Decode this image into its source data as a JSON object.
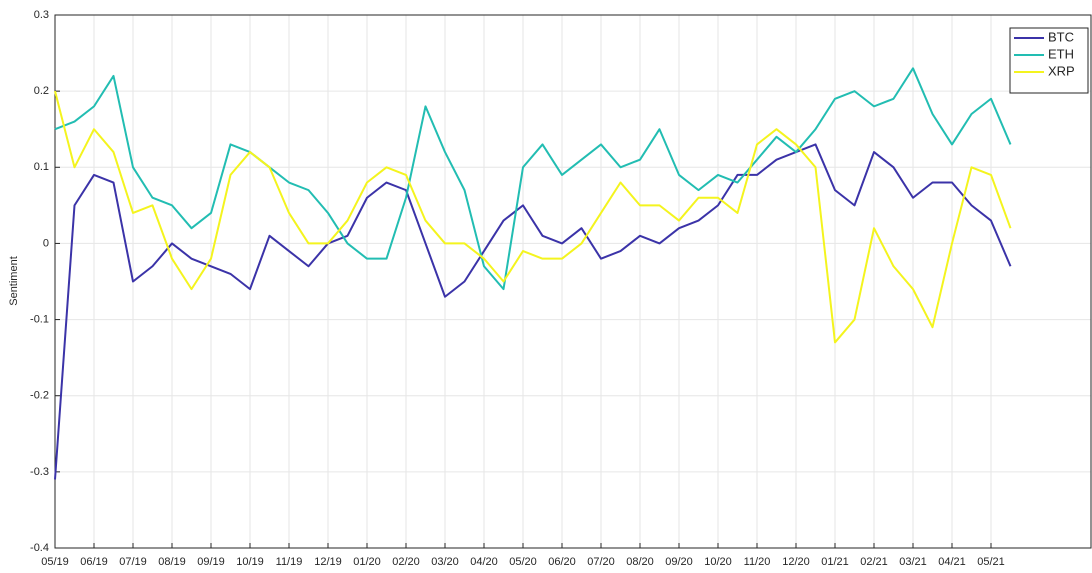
{
  "chart_data": {
    "type": "line",
    "ylabel": "Sentiment",
    "categories": [
      "05/19",
      null,
      "06/19",
      null,
      "07/19",
      null,
      "08/19",
      null,
      "09/19",
      null,
      "10/19",
      null,
      "11/19",
      null,
      "12/19",
      null,
      "01/20",
      null,
      "02/20",
      null,
      "03/20",
      null,
      "04/20",
      null,
      "05/20",
      null,
      "06/20",
      null,
      "07/20",
      null,
      "08/20",
      null,
      "09/20",
      null,
      "10/20",
      null,
      "11/20",
      null,
      "12/20",
      null,
      "01/21",
      null,
      "02/21",
      null,
      "03/21",
      null,
      "04/21",
      null,
      "05/21",
      null
    ],
    "series": [
      {
        "name": "BTC",
        "color": "#3b33a8",
        "values": [
          -0.31,
          0.05,
          0.09,
          0.08,
          -0.05,
          -0.03,
          0.0,
          -0.02,
          -0.03,
          -0.04,
          -0.06,
          0.01,
          -0.01,
          -0.03,
          0.0,
          0.01,
          0.06,
          0.08,
          0.07,
          0.0,
          -0.07,
          -0.05,
          -0.01,
          0.03,
          0.05,
          0.01,
          0.0,
          0.02,
          -0.02,
          -0.01,
          0.01,
          0.0,
          0.02,
          0.03,
          0.05,
          0.09,
          0.09,
          0.11,
          0.12,
          0.13,
          0.07,
          0.05,
          0.12,
          0.1,
          0.06,
          0.08,
          0.08,
          0.05,
          0.03,
          -0.03
        ]
      },
      {
        "name": "ETH",
        "color": "#22bdb2",
        "values": [
          0.15,
          0.16,
          0.18,
          0.22,
          0.1,
          0.06,
          0.05,
          0.02,
          0.04,
          0.13,
          0.12,
          0.1,
          0.08,
          0.07,
          0.04,
          0.0,
          -0.02,
          -0.02,
          0.06,
          0.18,
          0.12,
          0.07,
          -0.03,
          -0.06,
          0.1,
          0.13,
          0.09,
          0.11,
          0.13,
          0.1,
          0.11,
          0.15,
          0.09,
          0.07,
          0.09,
          0.08,
          0.11,
          0.14,
          0.12,
          0.15,
          0.19,
          0.2,
          0.18,
          0.19,
          0.23,
          0.17,
          0.13,
          0.17,
          0.19,
          0.13
        ]
      },
      {
        "name": "XRP",
        "color": "#f4f41e",
        "values": [
          0.2,
          0.1,
          0.15,
          0.12,
          0.04,
          0.05,
          -0.02,
          -0.06,
          -0.02,
          0.09,
          0.12,
          0.1,
          0.04,
          0.0,
          0.0,
          0.03,
          0.08,
          0.1,
          0.09,
          0.03,
          0.0,
          0.0,
          -0.02,
          -0.05,
          -0.01,
          -0.02,
          -0.02,
          0.0,
          0.04,
          0.08,
          0.05,
          0.05,
          0.03,
          0.06,
          0.06,
          0.04,
          0.13,
          0.15,
          0.13,
          0.1,
          -0.13,
          -0.1,
          0.02,
          -0.03,
          -0.06,
          -0.11,
          0.0,
          0.1,
          0.09,
          0.02
        ]
      }
    ],
    "ylim": [
      -0.4,
      0.3
    ],
    "yticks": [
      -0.4,
      -0.3,
      -0.2,
      -0.1,
      0,
      0.1,
      0.2,
      0.3
    ],
    "grid": true,
    "legend": "top-right"
  }
}
